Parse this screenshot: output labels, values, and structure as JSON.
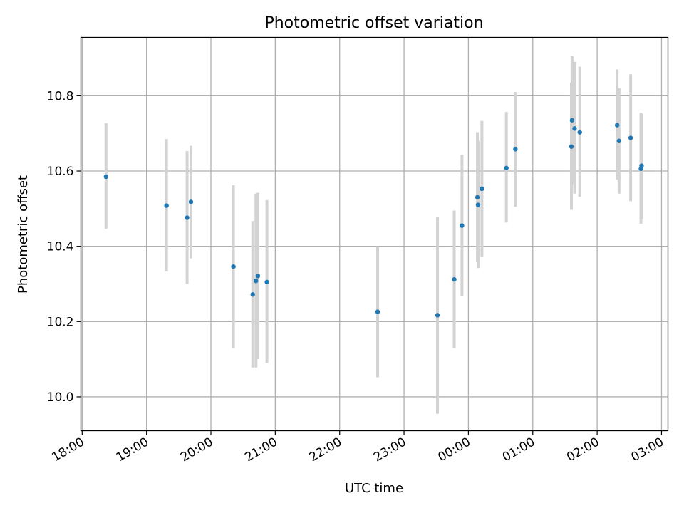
{
  "chart_data": {
    "type": "scatter",
    "title": "Photometric offset variation",
    "xlabel": "UTC time",
    "ylabel": "Photometric offset",
    "x_ticks": [
      "18:00",
      "19:00",
      "20:00",
      "21:00",
      "22:00",
      "23:00",
      "00:00",
      "01:00",
      "02:00",
      "03:00"
    ],
    "x_unit": "hours since 18:00 UTC",
    "xlim": [
      -0.02,
      9.1
    ],
    "y_ticks": [
      10.0,
      10.2,
      10.4,
      10.6,
      10.8
    ],
    "ylim": [
      9.91,
      10.955
    ],
    "grid": true,
    "point_color": "#1f77b4",
    "errorbar_color": "#d3d3d3",
    "points": [
      {
        "x": 0.37,
        "y": 10.585,
        "lo": 10.447,
        "hi": 10.727
      },
      {
        "x": 1.31,
        "y": 10.508,
        "lo": 10.333,
        "hi": 10.685
      },
      {
        "x": 1.63,
        "y": 10.476,
        "lo": 10.3,
        "hi": 10.653
      },
      {
        "x": 1.69,
        "y": 10.518,
        "lo": 10.368,
        "hi": 10.667
      },
      {
        "x": 2.35,
        "y": 10.346,
        "lo": 10.13,
        "hi": 10.562
      },
      {
        "x": 2.65,
        "y": 10.272,
        "lo": 10.078,
        "hi": 10.467
      },
      {
        "x": 2.7,
        "y": 10.308,
        "lo": 10.078,
        "hi": 10.54
      },
      {
        "x": 2.73,
        "y": 10.321,
        "lo": 10.1,
        "hi": 10.542
      },
      {
        "x": 2.87,
        "y": 10.305,
        "lo": 10.09,
        "hi": 10.523
      },
      {
        "x": 4.59,
        "y": 10.226,
        "lo": 10.052,
        "hi": 10.4
      },
      {
        "x": 5.52,
        "y": 10.217,
        "lo": 9.955,
        "hi": 10.478
      },
      {
        "x": 5.78,
        "y": 10.312,
        "lo": 10.13,
        "hi": 10.495
      },
      {
        "x": 5.9,
        "y": 10.455,
        "lo": 10.267,
        "hi": 10.643
      },
      {
        "x": 6.14,
        "y": 10.53,
        "lo": 10.358,
        "hi": 10.703
      },
      {
        "x": 6.15,
        "y": 10.51,
        "lo": 10.342,
        "hi": 10.68
      },
      {
        "x": 6.21,
        "y": 10.553,
        "lo": 10.373,
        "hi": 10.733
      },
      {
        "x": 6.59,
        "y": 10.608,
        "lo": 10.463,
        "hi": 10.757
      },
      {
        "x": 6.73,
        "y": 10.658,
        "lo": 10.505,
        "hi": 10.81
      },
      {
        "x": 7.6,
        "y": 10.665,
        "lo": 10.497,
        "hi": 10.835
      },
      {
        "x": 7.61,
        "y": 10.735,
        "lo": 10.565,
        "hi": 10.905
      },
      {
        "x": 7.65,
        "y": 10.713,
        "lo": 10.54,
        "hi": 10.89
      },
      {
        "x": 7.73,
        "y": 10.703,
        "lo": 10.532,
        "hi": 10.877
      },
      {
        "x": 8.31,
        "y": 10.722,
        "lo": 10.577,
        "hi": 10.87
      },
      {
        "x": 8.34,
        "y": 10.68,
        "lo": 10.54,
        "hi": 10.82
      },
      {
        "x": 8.52,
        "y": 10.688,
        "lo": 10.52,
        "hi": 10.857
      },
      {
        "x": 8.68,
        "y": 10.606,
        "lo": 10.46,
        "hi": 10.755
      },
      {
        "x": 8.69,
        "y": 10.614,
        "lo": 10.473,
        "hi": 10.752
      }
    ]
  }
}
